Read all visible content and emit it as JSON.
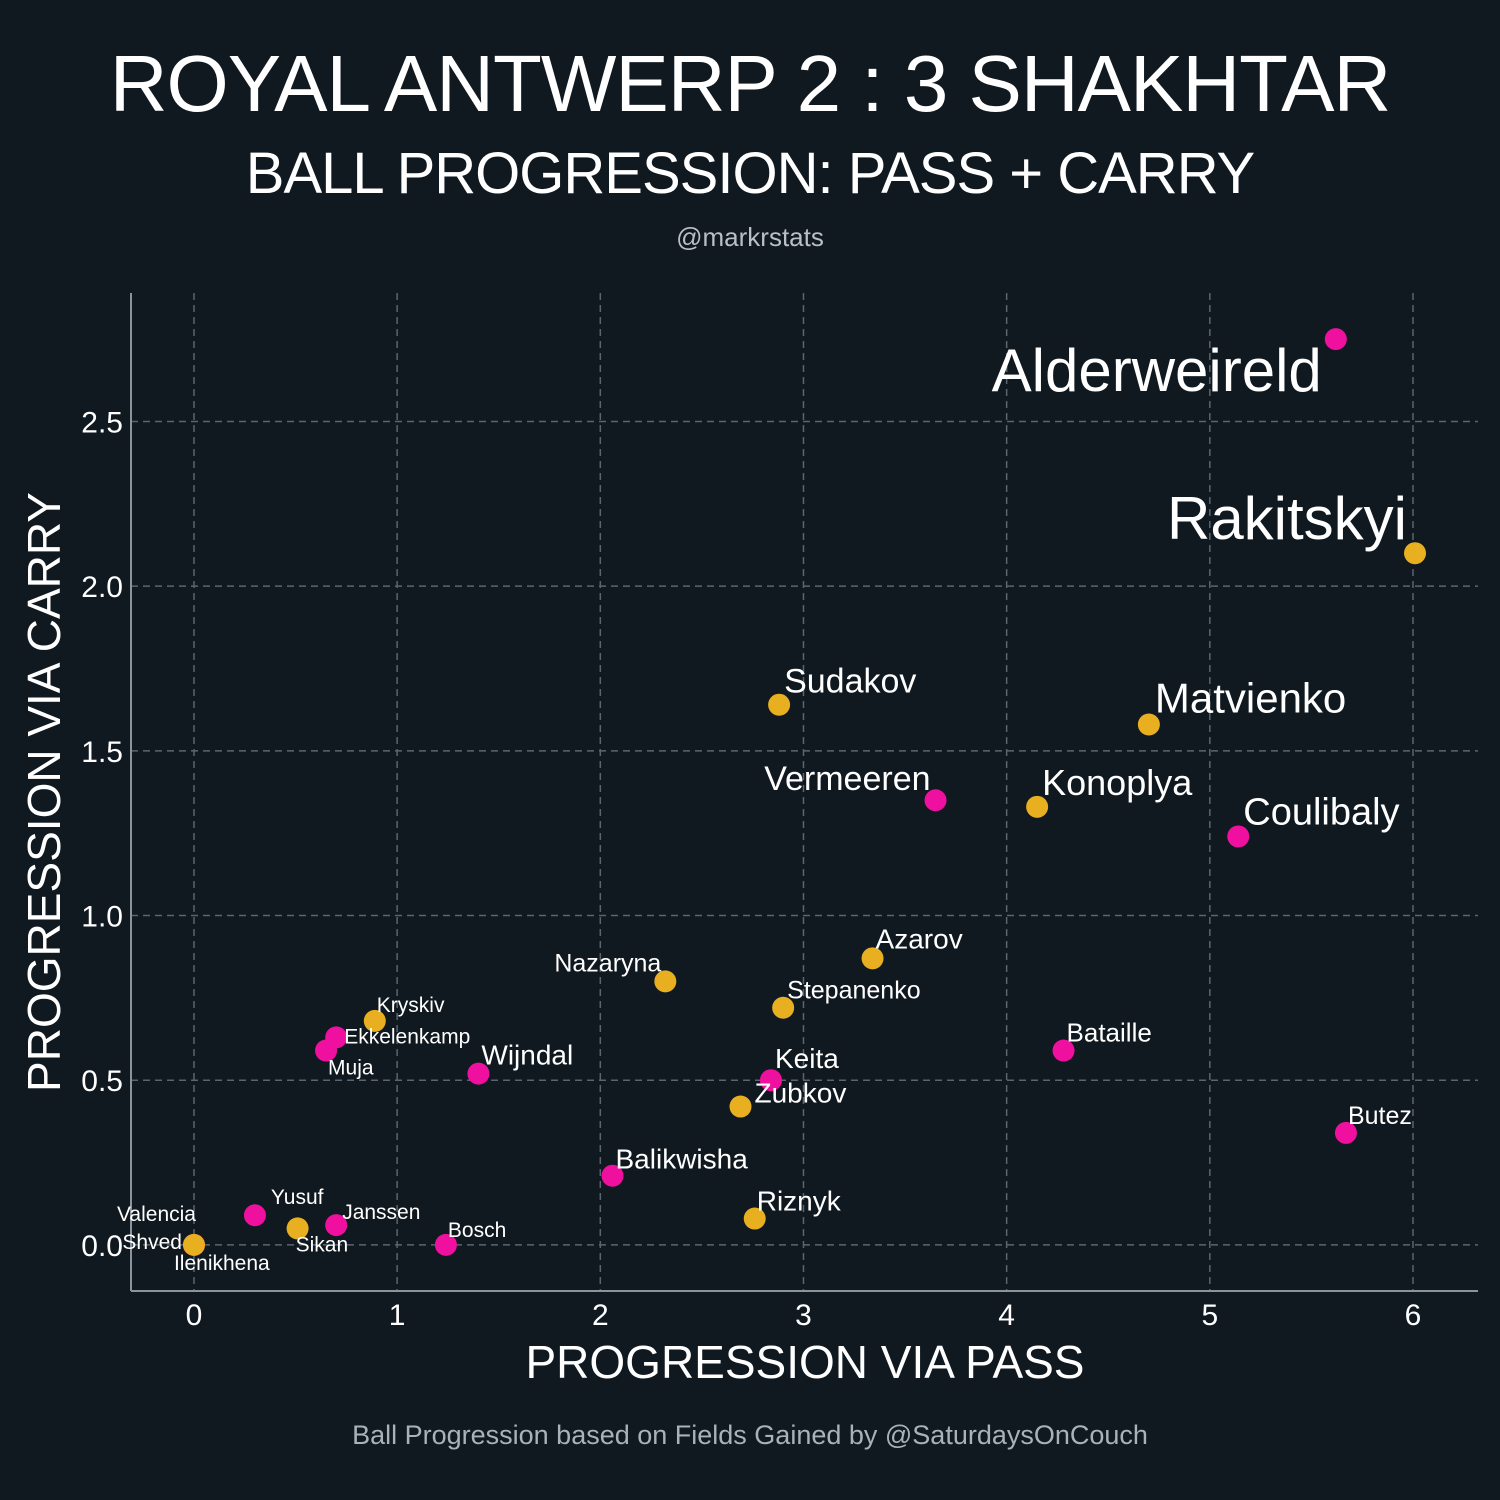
{
  "header": {
    "title": "ROYAL ANTWERP 2 : 3 SHAKHTAR",
    "subtitle": "BALL PROGRESSION: PASS + CARRY",
    "handle": "@markrstats"
  },
  "footer": "Ball Progression based on Fields Gained by @SaturdaysOnCouch",
  "colors": {
    "background": "#101820",
    "antwerp": "#f010a0",
    "shakhtar": "#e8b020",
    "grid": "#5a6570",
    "spine": "#8a949e"
  },
  "chart_data": {
    "type": "scatter",
    "title": "BALL PROGRESSION: PASS + CARRY",
    "xlabel": "PROGRESSION VIA PASS",
    "ylabel": "PROGRESSION VIA CARRY",
    "xlim": [
      -0.31,
      6.32
    ],
    "ylim": [
      -0.14,
      2.89
    ],
    "xticks": [
      0,
      1,
      2,
      3,
      4,
      5,
      6
    ],
    "xtick_labels": [
      "0",
      "1",
      "2",
      "3",
      "4",
      "5",
      "6"
    ],
    "yticks": [
      0.0,
      0.5,
      1.0,
      1.5,
      2.0,
      2.5
    ],
    "ytick_labels": [
      "0.0",
      "0.5",
      "1.0",
      "1.5",
      "2.0",
      "2.5"
    ],
    "grid": true,
    "series": [
      {
        "name": "Royal Antwerp",
        "color": "#f010a0",
        "points": [
          {
            "label": "Alderweireld",
            "x": 5.62,
            "y": 2.75
          },
          {
            "label": "Vermeeren",
            "x": 3.65,
            "y": 1.35
          },
          {
            "label": "Coulibaly",
            "x": 5.14,
            "y": 1.24
          },
          {
            "label": "Bataille",
            "x": 4.28,
            "y": 0.59
          },
          {
            "label": "Butez",
            "x": 5.67,
            "y": 0.34
          },
          {
            "label": "Keita",
            "x": 2.84,
            "y": 0.5
          },
          {
            "label": "Balikwisha",
            "x": 2.06,
            "y": 0.21
          },
          {
            "label": "Wijndal",
            "x": 1.4,
            "y": 0.52
          },
          {
            "label": "Ekkelenkamp",
            "x": 0.7,
            "y": 0.63
          },
          {
            "label": "Muja",
            "x": 0.65,
            "y": 0.59
          },
          {
            "label": "Janssen",
            "x": 0.7,
            "y": 0.06
          },
          {
            "label": "Bosch",
            "x": 1.24,
            "y": 0.0
          },
          {
            "label": "Yusuf",
            "x": 0.3,
            "y": 0.09
          },
          {
            "label": "Valencia",
            "x": 0.0,
            "y": 0.0
          },
          {
            "label": "Ilenikhena",
            "x": 0.0,
            "y": 0.0
          }
        ]
      },
      {
        "name": "Shakhtar",
        "color": "#e8b020",
        "points": [
          {
            "label": "Rakitskyi",
            "x": 6.01,
            "y": 2.1
          },
          {
            "label": "Sudakov",
            "x": 2.88,
            "y": 1.64
          },
          {
            "label": "Matvienko",
            "x": 4.7,
            "y": 1.58
          },
          {
            "label": "Konoplya",
            "x": 4.15,
            "y": 1.33
          },
          {
            "label": "Azarov",
            "x": 3.34,
            "y": 0.87
          },
          {
            "label": "Nazaryna",
            "x": 2.32,
            "y": 0.8
          },
          {
            "label": "Stepanenko",
            "x": 2.9,
            "y": 0.72
          },
          {
            "label": "Kryskiv",
            "x": 0.89,
            "y": 0.68
          },
          {
            "label": "Zubkov",
            "x": 2.69,
            "y": 0.42
          },
          {
            "label": "Riznyk",
            "x": 2.76,
            "y": 0.08
          },
          {
            "label": "Sikan",
            "x": 0.51,
            "y": 0.05
          },
          {
            "label": "Shved",
            "x": 0.0,
            "y": 0.0
          }
        ]
      }
    ]
  }
}
